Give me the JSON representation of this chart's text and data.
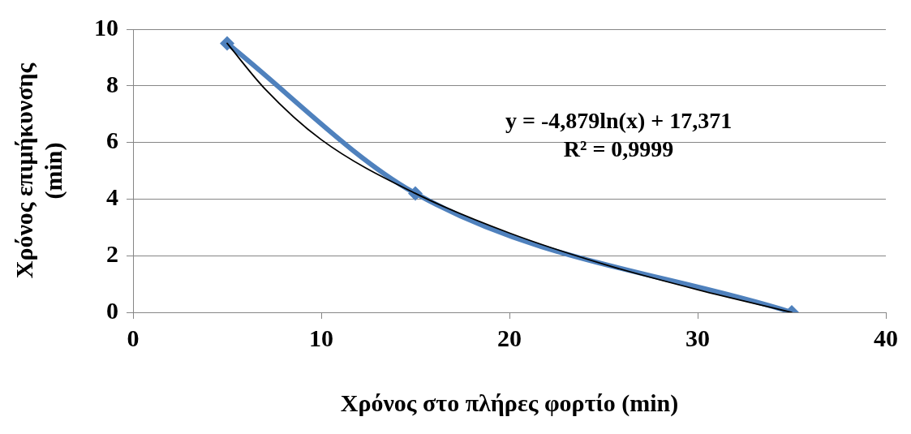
{
  "chart_data": {
    "type": "line",
    "xlabel": "Χρόνος στο πλήρες φορτίο (min)",
    "ylabel": "Χρόνος επιμήκυνσης (min)",
    "x": [
      5,
      15,
      35
    ],
    "series": [
      {
        "color": "#4f81bd",
        "values": [
          9.5,
          4.2,
          0
        ],
        "marker": "diamond",
        "line_style": "solid"
      },
      {
        "type": "line",
        "color": "#000000",
        "x": [
          5,
          7,
          10,
          15,
          20,
          25,
          30,
          35
        ],
        "values": [
          9.5,
          7.9,
          6.1,
          4.2,
          2.8,
          1.7,
          0.8,
          0
        ],
        "marker": "none",
        "line_style": "solid"
      }
    ],
    "xlim": [
      0,
      40
    ],
    "xticks": [
      0,
      10,
      20,
      30,
      40
    ],
    "ylim": [
      0,
      10
    ],
    "yticks": [
      0,
      2,
      4,
      6,
      8,
      10
    ],
    "grid": "y",
    "legend": false,
    "annotations": [
      "y = -4,879ln(x) + 17,371",
      "R² = 0,9999"
    ]
  }
}
